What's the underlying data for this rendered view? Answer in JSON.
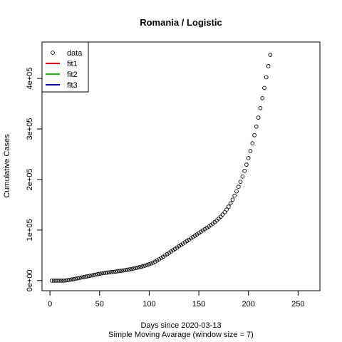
{
  "chart_data": {
    "type": "scatter",
    "title": "Romania / Logistic",
    "xlabel": "Days since 2020-03-13",
    "xlabel2": "Simple Moving Avarage (window size = 7)",
    "ylabel": "Cumulative Cases",
    "xlim": [
      -8,
      272
    ],
    "ylim": [
      -20000,
      472000
    ],
    "x_ticks": [
      0,
      50,
      100,
      150,
      200,
      250
    ],
    "x_tick_labels": [
      "0",
      "50",
      "100",
      "150",
      "200",
      "250"
    ],
    "y_ticks": [
      0,
      100000,
      200000,
      300000,
      400000
    ],
    "y_tick_labels": [
      "0e+00",
      "1e+05",
      "2e+05",
      "3e+05",
      "4e+05"
    ],
    "grid": false,
    "legend_position": "top-left",
    "legend": [
      {
        "label": "data",
        "kind": "point",
        "color": "#000000"
      },
      {
        "label": "fit1",
        "kind": "line",
        "color": "#ff0000"
      },
      {
        "label": "fit2",
        "kind": "line",
        "color": "#00cd00"
      },
      {
        "label": "fit3",
        "kind": "line",
        "color": "#0000cd"
      }
    ],
    "series": [
      {
        "name": "data",
        "marker": "open-circle",
        "color": "#000000",
        "x_start": 2,
        "x_step": 2,
        "values": [
          0,
          0,
          0,
          0,
          0,
          0,
          0,
          300,
          800,
          1600,
          2300,
          3000,
          3800,
          4600,
          5400,
          6200,
          7000,
          7800,
          8600,
          9400,
          10200,
          11000,
          11800,
          12600,
          13400,
          14200,
          14900,
          15500,
          16000,
          16400,
          16800,
          17300,
          17800,
          18300,
          18900,
          19500,
          20100,
          20700,
          21400,
          22100,
          22900,
          23700,
          24600,
          25500,
          26500,
          27500,
          28600,
          29700,
          30900,
          32300,
          33800,
          35500,
          37500,
          39800,
          42200,
          44700,
          47200,
          49800,
          52300,
          54900,
          57500,
          60100,
          62700,
          65300,
          67900,
          70500,
          73100,
          75700,
          78300,
          80900,
          83500,
          86100,
          88700,
          91300,
          93900,
          96500,
          99100,
          101700,
          104300,
          106900,
          109600,
          112500,
          115600,
          118900,
          122500,
          126300,
          130600,
          135300,
          140500,
          146300,
          152900,
          160100,
          168000,
          176500,
          185600,
          195400,
          205900,
          217200,
          229300,
          242400,
          256400,
          271600,
          287700,
          304700,
          322500,
          341300,
          360900,
          381300,
          402300,
          424200,
          446600
        ]
      }
    ]
  }
}
